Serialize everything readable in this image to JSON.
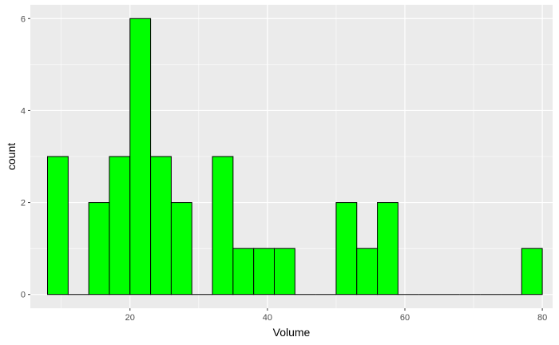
{
  "chart_data": {
    "type": "bar",
    "subtype": "histogram",
    "title": "",
    "xlabel": "Volume",
    "ylabel": "count",
    "xlim": [
      5.5,
      81.5
    ],
    "ylim": [
      -0.3,
      6.3
    ],
    "bin_width": 3.0,
    "bins": [
      {
        "x0": 8.0,
        "x1": 11.0,
        "count": 3
      },
      {
        "x0": 11.0,
        "x1": 14.0,
        "count": 0
      },
      {
        "x0": 14.0,
        "x1": 17.0,
        "count": 2
      },
      {
        "x0": 17.0,
        "x1": 20.0,
        "count": 3
      },
      {
        "x0": 20.0,
        "x1": 23.0,
        "count": 6
      },
      {
        "x0": 23.0,
        "x1": 26.0,
        "count": 3
      },
      {
        "x0": 26.0,
        "x1": 29.0,
        "count": 2
      },
      {
        "x0": 29.0,
        "x1": 32.0,
        "count": 0
      },
      {
        "x0": 32.0,
        "x1": 35.0,
        "count": 3
      },
      {
        "x0": 35.0,
        "x1": 38.0,
        "count": 1
      },
      {
        "x0": 38.0,
        "x1": 41.0,
        "count": 1
      },
      {
        "x0": 41.0,
        "x1": 44.0,
        "count": 1
      },
      {
        "x0": 44.0,
        "x1": 47.0,
        "count": 0
      },
      {
        "x0": 47.0,
        "x1": 50.0,
        "count": 0
      },
      {
        "x0": 50.0,
        "x1": 53.0,
        "count": 2
      },
      {
        "x0": 53.0,
        "x1": 56.0,
        "count": 1
      },
      {
        "x0": 56.0,
        "x1": 59.0,
        "count": 2
      },
      {
        "x0": 59.0,
        "x1": 62.0,
        "count": 0
      },
      {
        "x0": 62.0,
        "x1": 65.0,
        "count": 0
      },
      {
        "x0": 65.0,
        "x1": 68.0,
        "count": 0
      },
      {
        "x0": 68.0,
        "x1": 71.0,
        "count": 0
      },
      {
        "x0": 71.0,
        "x1": 74.0,
        "count": 0
      },
      {
        "x0": 74.0,
        "x1": 77.0,
        "count": 0
      },
      {
        "x0": 77.0,
        "x1": 80.0,
        "count": 1
      }
    ],
    "x_ticks": [
      20,
      40,
      60,
      80
    ],
    "x_tick_labels": [
      "20",
      "40",
      "60",
      "80"
    ],
    "y_ticks": [
      0,
      2,
      4,
      6
    ],
    "y_tick_labels": [
      "0",
      "2",
      "4",
      "6"
    ],
    "grid": true,
    "legend": "none",
    "colors": {
      "panel_background": "#ebebeb",
      "grid_major": "#ffffff",
      "bar_fill": "#00ff00",
      "bar_outline": "#000000"
    }
  }
}
